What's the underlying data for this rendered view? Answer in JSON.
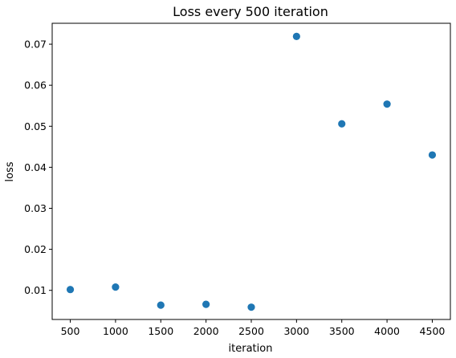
{
  "chart_data": {
    "type": "scatter",
    "title": "Loss every 500 iteration",
    "xlabel": "iteration",
    "ylabel": "loss",
    "xlim": [
      300,
      4700
    ],
    "ylim": [
      0.0029,
      0.0751
    ],
    "x_ticks": [
      500,
      1000,
      1500,
      2000,
      2500,
      3000,
      3500,
      4000,
      4500
    ],
    "y_ticks": [
      0.01,
      0.02,
      0.03,
      0.04,
      0.05,
      0.06,
      0.07
    ],
    "x_tick_labels": [
      "500",
      "1000",
      "1500",
      "2000",
      "2500",
      "3000",
      "3500",
      "4000",
      "4500"
    ],
    "y_tick_labels": [
      "0.01",
      "0.02",
      "0.03",
      "0.04",
      "0.05",
      "0.06",
      "0.07"
    ],
    "grid": false,
    "series": [
      {
        "color": "#1f77b4",
        "x": [
          500,
          1000,
          1500,
          2000,
          2500,
          3000,
          3500,
          4000,
          4500
        ],
        "y": [
          0.0102,
          0.0108,
          0.0064,
          0.0066,
          0.0059,
          0.0719,
          0.0506,
          0.0554,
          0.043
        ]
      }
    ]
  }
}
